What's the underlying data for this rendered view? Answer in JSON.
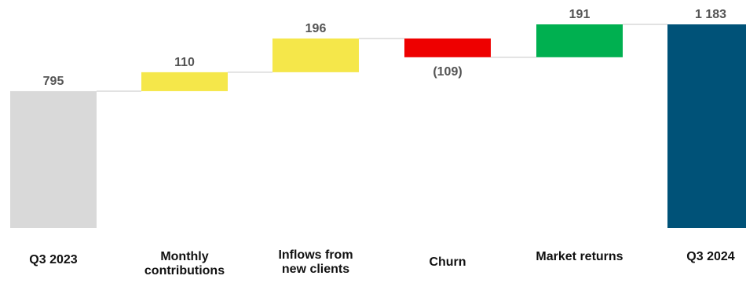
{
  "chart_data": {
    "type": "bar",
    "subtype": "waterfall",
    "categories": [
      [
        "Q3 2023"
      ],
      [
        "Monthly",
        "contributions"
      ],
      [
        "Inflows from",
        "new clients"
      ],
      [
        "Churn"
      ],
      [
        "Market returns"
      ],
      [
        "Q3 2024"
      ]
    ],
    "values": [
      795,
      110,
      196,
      -109,
      191,
      1183
    ],
    "value_labels": [
      "795",
      "110",
      "196",
      "(109)",
      "191",
      "1 183"
    ],
    "bar_kinds": [
      "total",
      "delta",
      "delta",
      "delta",
      "delta",
      "total"
    ],
    "colors": [
      "#d9d9d9",
      "#f5e74a",
      "#f5e74a",
      "#ee0000",
      "#00b050",
      "#005278"
    ],
    "connector_color": "#d9d9d9",
    "grid": false,
    "legend": "none"
  }
}
